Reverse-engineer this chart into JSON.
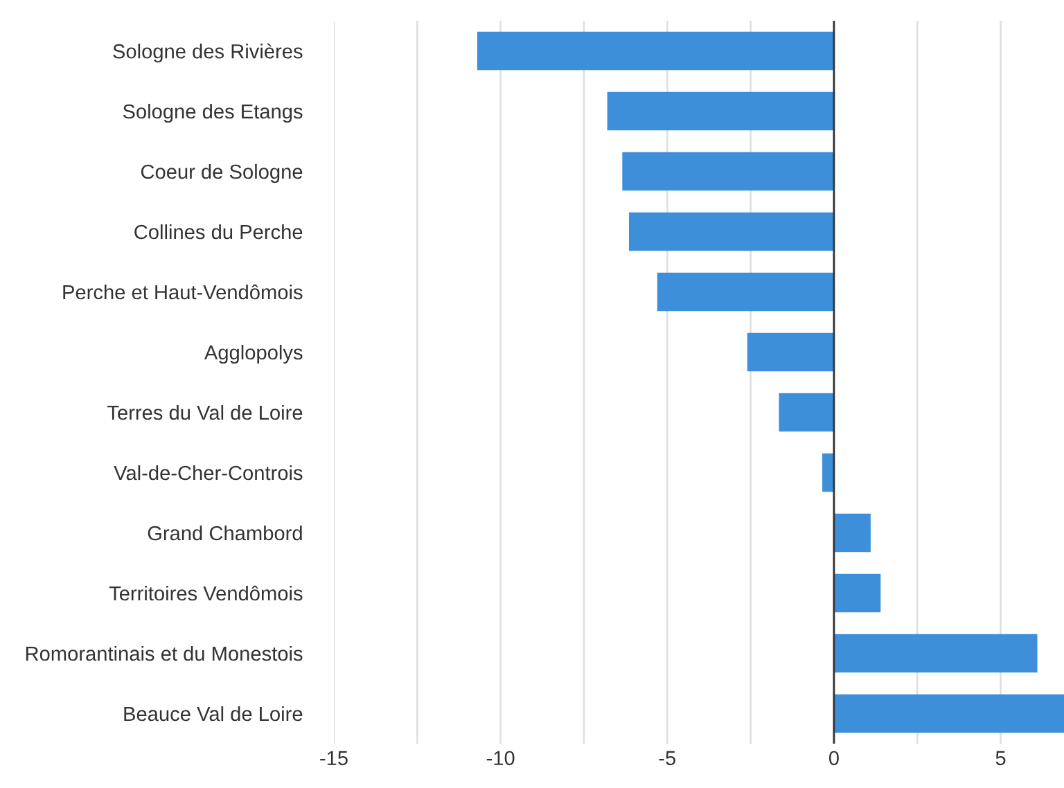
{
  "chart_data": {
    "type": "bar",
    "orientation": "horizontal",
    "categories": [
      "Sologne des Rivières",
      "Sologne des Etangs",
      "Coeur de Sologne",
      "Collines du Perche",
      "Perche et Haut-Vendômois",
      "Agglopolys",
      "Terres du Val de Loire",
      "Val-de-Cher-Controis",
      "Grand Chambord",
      "Territoires Vendômois",
      "Romorantinais et du Monestois",
      "Beauce Val de Loire"
    ],
    "values": [
      -10.7,
      -6.8,
      -6.35,
      -6.15,
      -5.3,
      -2.6,
      -1.65,
      -0.35,
      1.1,
      1.4,
      6.1,
      6.9
    ],
    "color": "#3d8fd9",
    "xlim": [
      -15,
      6.9
    ],
    "xticks": [
      -15,
      {
        "value": -12.5,
        "label": null
      },
      -10,
      {
        "value": -7.5,
        "label": null
      },
      -5,
      {
        "value": -2.5,
        "label": null
      },
      0,
      {
        "value": 2.5,
        "label": null
      },
      5
    ],
    "grid": "x",
    "ref_lines": [
      {
        "axis": "x",
        "value": 0,
        "color": "#333333"
      }
    ]
  }
}
